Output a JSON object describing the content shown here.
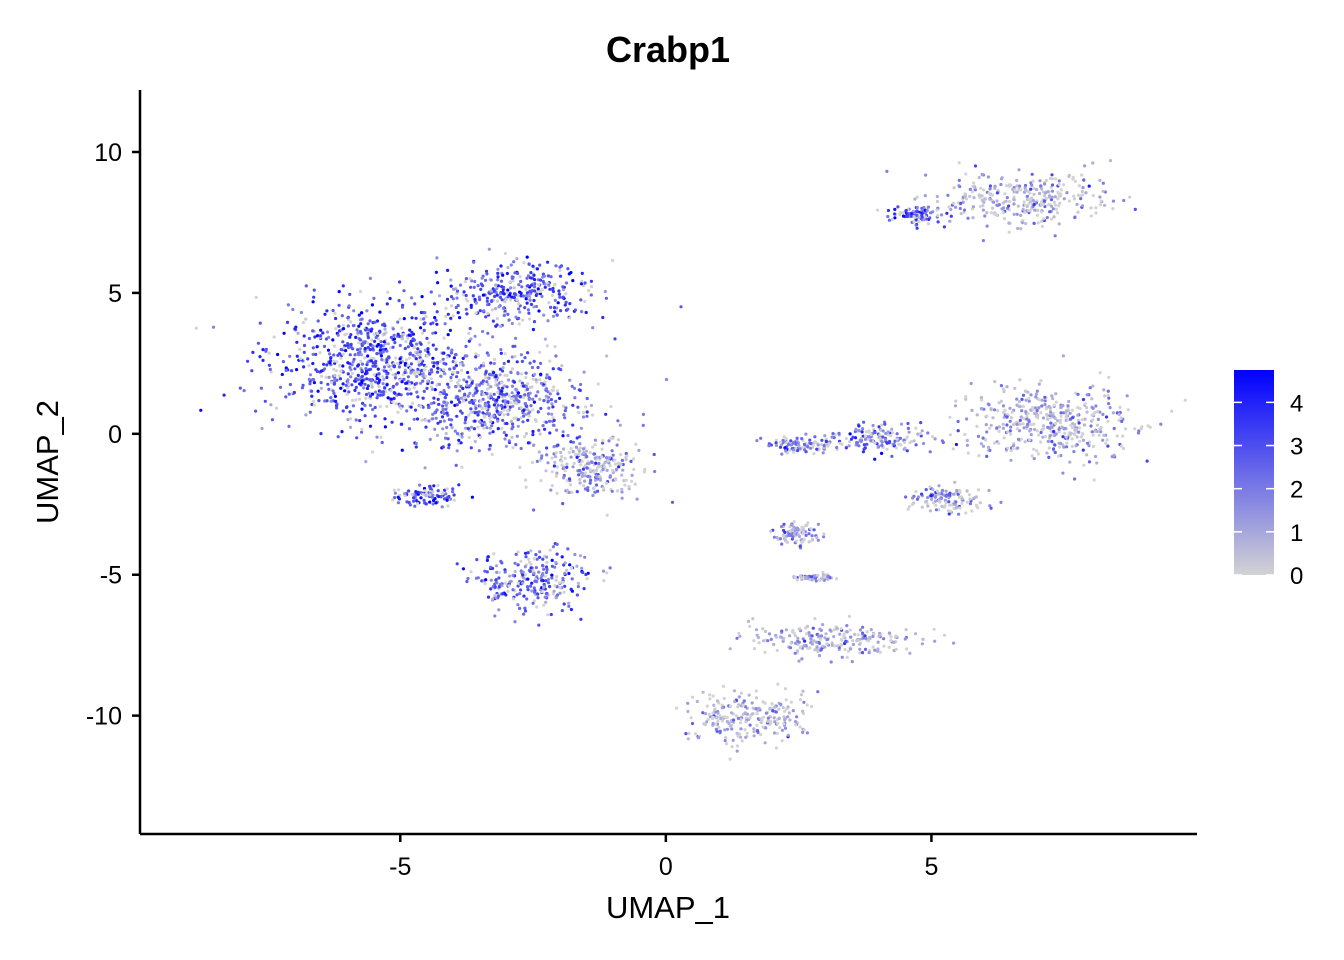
{
  "chart_data": {
    "type": "scatter",
    "title": "Crabp1",
    "xlabel": "UMAP_1",
    "ylabel": "UMAP_2",
    "xlim": [
      -9.9,
      10.0
    ],
    "ylim": [
      -14.2,
      12.2
    ],
    "x_ticks": [
      -5,
      0,
      5
    ],
    "x_tick_labels": [
      "-5",
      "0",
      "5"
    ],
    "y_ticks": [
      -10,
      -5,
      0,
      5,
      10
    ],
    "y_tick_labels": [
      "-10",
      "-5",
      "0",
      "5",
      "10"
    ],
    "grid": false,
    "color_scale": {
      "low_color": "#d3d3d3",
      "high_color": "#0000ff",
      "min": 0,
      "max": 4.75,
      "ticks": [
        0,
        1,
        2,
        3,
        4
      ],
      "tick_labels": [
        "0",
        "1",
        "2",
        "3",
        "4"
      ],
      "legend_position": "right"
    },
    "clusters": [
      {
        "center": [
          -5.5,
          2.5
        ],
        "spread": [
          1.6,
          1.8
        ],
        "expression_mean": 3.0
      },
      {
        "center": [
          -3.2,
          1.2
        ],
        "spread": [
          1.4,
          1.5
        ],
        "expression_mean": 2.4
      },
      {
        "center": [
          -1.4,
          -1.2
        ],
        "spread": [
          0.8,
          0.9
        ],
        "expression_mean": 1.4
      },
      {
        "center": [
          -2.8,
          5.0
        ],
        "spread": [
          1.2,
          0.9
        ],
        "expression_mean": 2.8
      },
      {
        "center": [
          -2.5,
          -5.2
        ],
        "spread": [
          0.9,
          0.9
        ],
        "expression_mean": 2.6
      },
      {
        "center": [
          -4.5,
          -2.2
        ],
        "spread": [
          0.5,
          0.3
        ],
        "expression_mean": 2.8
      },
      {
        "center": [
          6.8,
          8.3
        ],
        "spread": [
          1.3,
          0.8
        ],
        "expression_mean": 0.9
      },
      {
        "center": [
          4.7,
          7.8
        ],
        "spread": [
          0.4,
          0.3
        ],
        "expression_mean": 2.9
      },
      {
        "center": [
          7.2,
          0.4
        ],
        "spread": [
          1.3,
          1.1
        ],
        "expression_mean": 0.9
      },
      {
        "center": [
          4.0,
          -0.2
        ],
        "spread": [
          0.9,
          0.4
        ],
        "expression_mean": 2.3
      },
      {
        "center": [
          2.6,
          -0.4
        ],
        "spread": [
          0.6,
          0.25
        ],
        "expression_mean": 1.8
      },
      {
        "center": [
          5.3,
          -2.3
        ],
        "spread": [
          0.6,
          0.4
        ],
        "expression_mean": 1.3
      },
      {
        "center": [
          2.5,
          -3.6
        ],
        "spread": [
          0.35,
          0.35
        ],
        "expression_mean": 1.6
      },
      {
        "center": [
          1.5,
          -10.1
        ],
        "spread": [
          0.9,
          0.8
        ],
        "expression_mean": 0.9
      },
      {
        "center": [
          3.2,
          -7.3
        ],
        "spread": [
          1.3,
          0.5
        ],
        "expression_mean": 0.9
      },
      {
        "center": [
          2.8,
          -5.1
        ],
        "spread": [
          0.3,
          0.08
        ],
        "expression_mean": 1.2
      }
    ]
  }
}
